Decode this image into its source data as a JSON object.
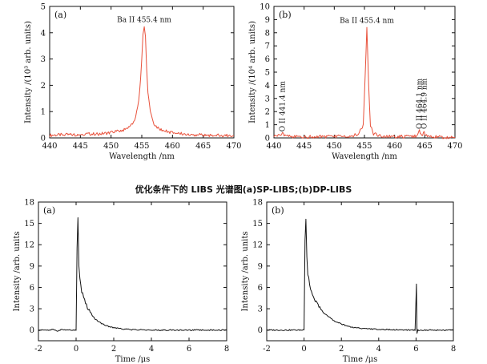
{
  "caption": "优化条件下的 LIBS 光谱图(a)SP-LIBS;(b)DP-LIBS",
  "chart_data": [
    {
      "type": "line",
      "panel_label": "(a)",
      "xlabel": "Wavelength /nm",
      "ylabel": "Intensity /(10³ arb. units)",
      "xlim": [
        440,
        470
      ],
      "ylim": [
        0,
        5
      ],
      "xticks": [
        440,
        445,
        450,
        455,
        460,
        465,
        470
      ],
      "yticks": [
        0,
        1,
        2,
        3,
        4,
        5
      ],
      "series": [
        {
          "color": "#e8503a",
          "x": [
            440,
            442,
            444,
            446,
            448,
            450,
            451,
            452,
            453,
            453.5,
            454,
            454.5,
            454.8,
            455,
            455.2,
            455.4,
            455.6,
            455.8,
            456,
            456.4,
            457,
            457.5,
            458,
            459,
            460,
            462,
            464,
            466,
            468,
            470
          ],
          "y": [
            0.1,
            0.12,
            0.12,
            0.15,
            0.15,
            0.2,
            0.25,
            0.3,
            0.42,
            0.55,
            0.8,
            1.4,
            2.2,
            3.0,
            3.9,
            4.25,
            3.8,
            2.6,
            1.7,
            0.95,
            0.55,
            0.42,
            0.32,
            0.25,
            0.2,
            0.15,
            0.12,
            0.1,
            0.1,
            0.08
          ]
        }
      ],
      "annotations": [
        {
          "text": "Ba II 455.4 nm",
          "x": 455.4,
          "y": 4.4
        }
      ]
    },
    {
      "type": "line",
      "panel_label": "(b)",
      "xlabel": "Wavelength /nm",
      "ylabel": "Intensity /(10⁴ arb. units)",
      "xlim": [
        440,
        470
      ],
      "ylim": [
        0,
        10
      ],
      "xticks": [
        440,
        445,
        450,
        455,
        460,
        465,
        470
      ],
      "yticks": [
        0,
        1,
        2,
        3,
        4,
        5,
        6,
        7,
        8,
        9,
        10
      ],
      "series": [
        {
          "color": "#e8503a",
          "x": [
            440,
            441,
            441.4,
            442,
            444,
            446,
            448,
            450,
            452,
            454,
            454.8,
            455.1,
            455.4,
            455.7,
            456,
            456.5,
            458,
            460,
            462,
            463.5,
            464.1,
            464.5,
            464.9,
            465.3,
            466,
            468,
            470
          ],
          "y": [
            0.15,
            0.2,
            0.3,
            0.15,
            0.08,
            0.08,
            0.1,
            0.1,
            0.12,
            0.25,
            1.0,
            4.5,
            8.4,
            4.0,
            0.9,
            0.3,
            0.12,
            0.1,
            0.1,
            0.12,
            0.5,
            0.2,
            0.45,
            0.15,
            0.08,
            0.06,
            0.06
          ]
        }
      ],
      "annotations": [
        {
          "text": "Ba II 455.4 nm",
          "x": 455.4,
          "y": 8.75
        },
        {
          "text": "O II 441.4 nm",
          "x": 441.4,
          "y": 0.35,
          "rotate": true
        },
        {
          "text": "O II 464.1 nm",
          "x": 464.1,
          "y": 0.55,
          "rotate": true
        },
        {
          "text": "O II 464.9 nm",
          "x": 464.9,
          "y": 0.55,
          "rotate": true
        }
      ]
    },
    {
      "type": "line",
      "panel_label": "(a)",
      "xlabel": "Time /μs",
      "ylabel": "Intensity /arb. units",
      "xlim": [
        -2,
        8
      ],
      "ylim": [
        -1.5,
        18
      ],
      "xticks": [
        -2,
        0,
        2,
        4,
        6,
        8
      ],
      "yticks": [
        0,
        3,
        6,
        9,
        12,
        15,
        18
      ],
      "series": [
        {
          "color": "#111111",
          "x": [
            -2,
            -1.5,
            -1.2,
            -1,
            -0.8,
            -0.6,
            -0.2,
            0,
            0.05,
            0.1,
            0.15,
            0.2,
            0.3,
            0.4,
            0.6,
            0.8,
            1,
            1.3,
            1.6,
            2,
            2.5,
            3,
            4,
            5,
            6,
            7,
            8
          ],
          "y": [
            0,
            0,
            0.1,
            -0.2,
            0.1,
            0,
            0,
            0,
            12,
            15.2,
            9,
            7,
            5.5,
            4.5,
            3.2,
            2.3,
            1.6,
            1.0,
            0.6,
            0.35,
            0.15,
            0.05,
            0,
            0,
            0,
            0,
            0
          ]
        }
      ],
      "annotations": []
    },
    {
      "type": "line",
      "panel_label": "(b)",
      "xlabel": "Time /μs",
      "ylabel": "Intensity /arb. units",
      "xlim": [
        -2,
        8
      ],
      "ylim": [
        -1.5,
        18
      ],
      "xticks": [
        -2,
        0,
        2,
        4,
        6,
        8
      ],
      "yticks": [
        0,
        3,
        6,
        9,
        12,
        15,
        18
      ],
      "series": [
        {
          "color": "#111111",
          "x": [
            -2,
            -0.5,
            -0.05,
            0,
            0.05,
            0.1,
            0.15,
            0.2,
            0.3,
            0.4,
            0.6,
            0.8,
            1,
            1.3,
            1.6,
            2,
            2.5,
            3,
            4,
            5,
            5.95,
            6.02,
            6.05,
            6.1,
            7,
            8
          ],
          "y": [
            0,
            0,
            0,
            0,
            12,
            15.2,
            10,
            8,
            6.5,
            5.5,
            4.2,
            3.3,
            2.6,
            1.9,
            1.3,
            0.85,
            0.45,
            0.25,
            0.1,
            0.04,
            0,
            6.5,
            -0.5,
            0,
            0,
            0
          ]
        }
      ],
      "annotations": []
    }
  ]
}
